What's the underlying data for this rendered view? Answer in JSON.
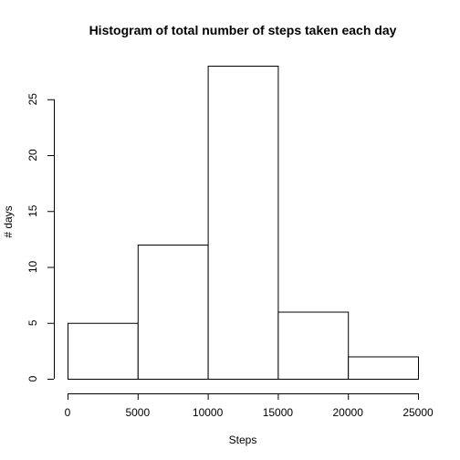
{
  "chart_data": {
    "type": "bar",
    "title": "Histogram of total number of steps taken each day",
    "xlabel": "Steps",
    "ylabel": "# days",
    "bins": [
      [
        0,
        5000
      ],
      [
        5000,
        10000
      ],
      [
        10000,
        15000
      ],
      [
        15000,
        20000
      ],
      [
        20000,
        25000
      ]
    ],
    "values": [
      5,
      12,
      28,
      6,
      2
    ],
    "xlim": [
      0,
      25000
    ],
    "ylim": [
      0,
      28
    ],
    "xticks": [
      0,
      5000,
      10000,
      15000,
      20000,
      25000
    ],
    "yticks": [
      0,
      5,
      10,
      15,
      20,
      25
    ],
    "grid": false,
    "colors": {
      "bar_fill": "#ffffff",
      "bar_stroke": "#000000"
    }
  }
}
